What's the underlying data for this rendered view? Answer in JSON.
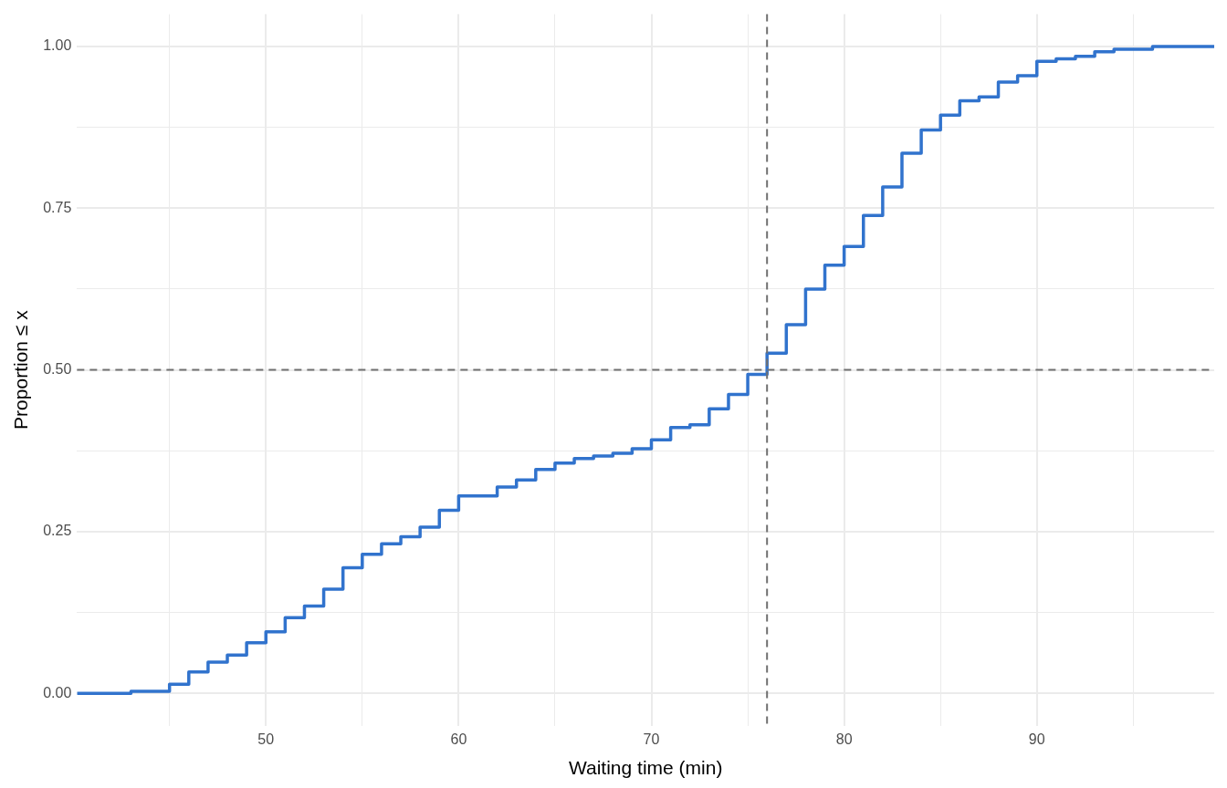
{
  "chart_data": {
    "type": "step",
    "xlabel": "Waiting time (min)",
    "ylabel": "Proportion ≤ x",
    "x": [
      40.2,
      43,
      45,
      46,
      47,
      48,
      49,
      50,
      51,
      52,
      53,
      54,
      55,
      56,
      57,
      58,
      59,
      60,
      62,
      63,
      64,
      65,
      66,
      67,
      68,
      69,
      70,
      71,
      72,
      73,
      74,
      75,
      76,
      77,
      78,
      79,
      80,
      81,
      82,
      83,
      84,
      85,
      86,
      87,
      88,
      89,
      90,
      91,
      92,
      93,
      94,
      96,
      99.2
    ],
    "series": [
      {
        "color": "#3173cd",
        "values": [
          0,
          0.003,
          0.014,
          0.033,
          0.048,
          0.059,
          0.078,
          0.095,
          0.117,
          0.135,
          0.161,
          0.194,
          0.215,
          0.231,
          0.242,
          0.257,
          0.283,
          0.305,
          0.319,
          0.33,
          0.346,
          0.356,
          0.363,
          0.367,
          0.371,
          0.378,
          0.392,
          0.411,
          0.415,
          0.44,
          0.462,
          0.493,
          0.526,
          0.57,
          0.625,
          0.662,
          0.691,
          0.739,
          0.783,
          0.835,
          0.871,
          0.894,
          0.916,
          0.922,
          0.945,
          0.955,
          0.977,
          0.981,
          0.985,
          0.992,
          0.996,
          1,
          1
        ]
      }
    ],
    "xlim": [
      40.2,
      99.2
    ],
    "ylim": [
      -0.05,
      1.05
    ],
    "xticks": [
      {
        "value": 45,
        "label": null
      },
      50,
      {
        "value": 55,
        "label": null
      },
      60,
      {
        "value": 65,
        "label": null
      },
      70,
      {
        "value": 75,
        "label": null
      },
      80,
      {
        "value": 85,
        "label": null
      },
      90,
      {
        "value": 95,
        "label": null
      }
    ],
    "yticks": [
      {
        "value": 0,
        "label": "0.00"
      },
      {
        "value": 0.125,
        "label": null
      },
      {
        "value": 0.25,
        "label": "0.25"
      },
      {
        "value": 0.375,
        "label": null
      },
      {
        "value": 0.5,
        "label": "0.50"
      },
      {
        "value": 0.625,
        "label": null
      },
      {
        "value": 0.75,
        "label": "0.75"
      },
      {
        "value": 0.875,
        "label": null
      },
      {
        "value": 1,
        "label": "1.00"
      }
    ],
    "ref_lines": [
      {
        "axis": "x",
        "value": 76,
        "color": "#707070",
        "line_style": "dashed"
      },
      {
        "axis": "y",
        "value": 0.5,
        "color": "#707070",
        "line_style": "dashed"
      }
    ],
    "grid": true,
    "line_style": "solid"
  }
}
